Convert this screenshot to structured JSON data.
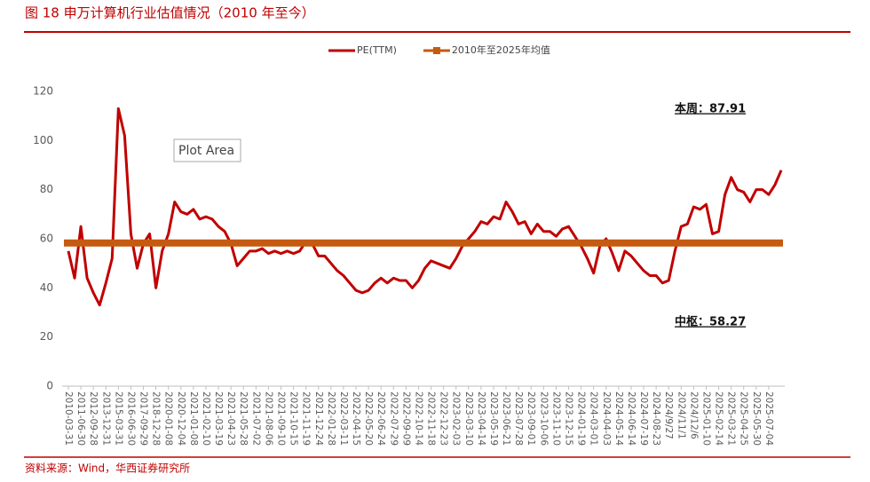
{
  "chart_data": {
    "type": "line",
    "title": "图 18  申万计算机行业估值情况（2010 年至今）",
    "source": "资料来源：Wind，华西证券研究所",
    "tooltip": "Plot Area",
    "annotations": [
      "本周：87.91",
      "中枢：58.27"
    ],
    "categories": [
      "2010-03-31",
      null,
      "2011-06-30",
      null,
      "2012-09-28",
      null,
      "2013-12-31",
      null,
      "2015-03-31",
      null,
      "2016-06-30",
      null,
      "2017-09-29",
      null,
      "2018-12-28",
      null,
      "2020-01-08",
      null,
      "2020-12-04",
      null,
      "2021-01-08",
      null,
      "2021-02-10",
      null,
      "2021-03-19",
      null,
      "2021-04-23",
      null,
      "2021-05-28",
      null,
      "2021-07-02",
      null,
      "2021-08-06",
      null,
      "2021-09-10",
      null,
      "2021-10-15",
      null,
      "2021-11-19",
      null,
      "2021-12-24",
      null,
      "2022-01-28",
      null,
      "2022-03-11",
      null,
      "2022-04-15",
      null,
      "2022-05-20",
      null,
      "2022-06-24",
      null,
      "2022-07-29",
      null,
      "2022-09-09",
      null,
      "2022-10-14",
      null,
      "2022-11-18",
      null,
      "2022-12-23",
      null,
      "2023-02-03",
      null,
      "2023-03-10",
      null,
      "2023-04-14",
      null,
      "2023-05-19",
      null,
      "2023-06-21",
      null,
      "2023-07-28",
      null,
      "2023-09-01",
      null,
      "2023-10-06",
      null,
      "2023-11-10",
      null,
      "2023-12-15",
      null,
      "2024-01-19",
      null,
      "2024-03-01",
      null,
      "2024-04-03",
      null,
      "2024-05-14",
      null,
      "2024-06-14",
      null,
      "2024-07-19",
      null,
      "2024-08-23",
      null,
      "2024/9/27",
      null,
      "2024/11/1",
      null,
      "2024/12/6",
      null,
      "2025-01-10",
      null,
      "2025-02-14",
      null,
      "2025-03-21",
      null,
      "2025-04-25",
      null,
      "2025-05-30",
      null,
      "2025-07-04",
      null,
      null
    ],
    "series": [
      {
        "name": "PE(TTM)",
        "color": "#c00000",
        "values": [
          55,
          44,
          65,
          44,
          38,
          33,
          42,
          52,
          113,
          102,
          62,
          48,
          58,
          62,
          40,
          55,
          62,
          75,
          71,
          70,
          72,
          68,
          69,
          68,
          65,
          63,
          58,
          49,
          52,
          55,
          55,
          56,
          54,
          55,
          54,
          55,
          54,
          55,
          59,
          58,
          53,
          53,
          50,
          47,
          45,
          42,
          39,
          38,
          39,
          42,
          44,
          42,
          44,
          43,
          43,
          40,
          43,
          48,
          51,
          50,
          49,
          48,
          52,
          57,
          60,
          63,
          67,
          66,
          69,
          68,
          75,
          71,
          66,
          67,
          62,
          66,
          63,
          63,
          61,
          64,
          65,
          61,
          57,
          52,
          46,
          57,
          60,
          54,
          47,
          55,
          53,
          50,
          47,
          45,
          45,
          42,
          43,
          55,
          65,
          66,
          73,
          72,
          74,
          62,
          63,
          78,
          85,
          80,
          79,
          75,
          80,
          80,
          78,
          82,
          87.91
        ]
      },
      {
        "name": "2010年至2025年均值",
        "color": "#c55a11",
        "value": 58.27
      }
    ],
    "ylim": [
      0,
      120
    ],
    "yticks": [
      0,
      20,
      40,
      60,
      80,
      100,
      120
    ],
    "grid": false,
    "legend": "top"
  }
}
